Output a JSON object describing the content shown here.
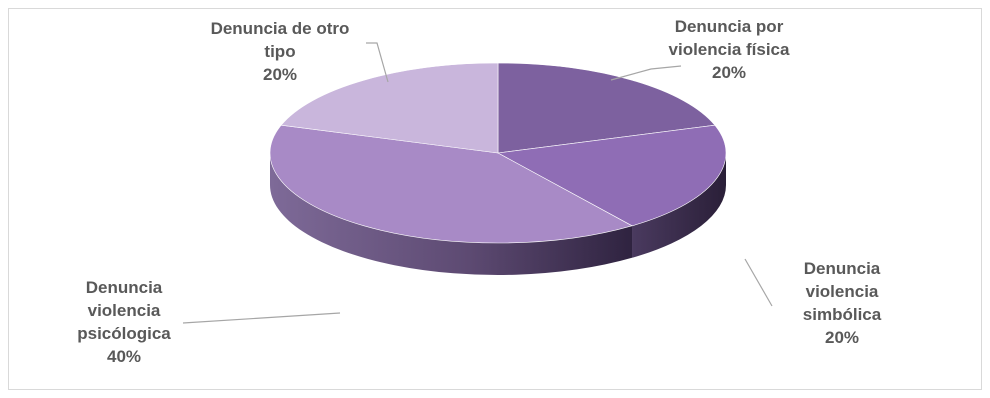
{
  "chart_data": {
    "type": "pie",
    "style": "3d",
    "title": "",
    "slices": [
      {
        "label_lines": [
          "Denuncia por",
          "violencia física"
        ],
        "value": 20,
        "percent_label": "20%",
        "color": "#7d619f"
      },
      {
        "label_lines": [
          "Denuncia",
          "violencia",
          "simbólica"
        ],
        "value": 20,
        "percent_label": "20%",
        "color": "#8f6db5"
      },
      {
        "label_lines": [
          "Denuncia",
          "violencia",
          "psicólogica"
        ],
        "value": 40,
        "percent_label": "40%",
        "color": "#a88ac6"
      },
      {
        "label_lines": [
          "Denuncia de otro",
          "tipo"
        ],
        "value": 20,
        "percent_label": "20%",
        "color": "#c9b6dc"
      }
    ]
  }
}
